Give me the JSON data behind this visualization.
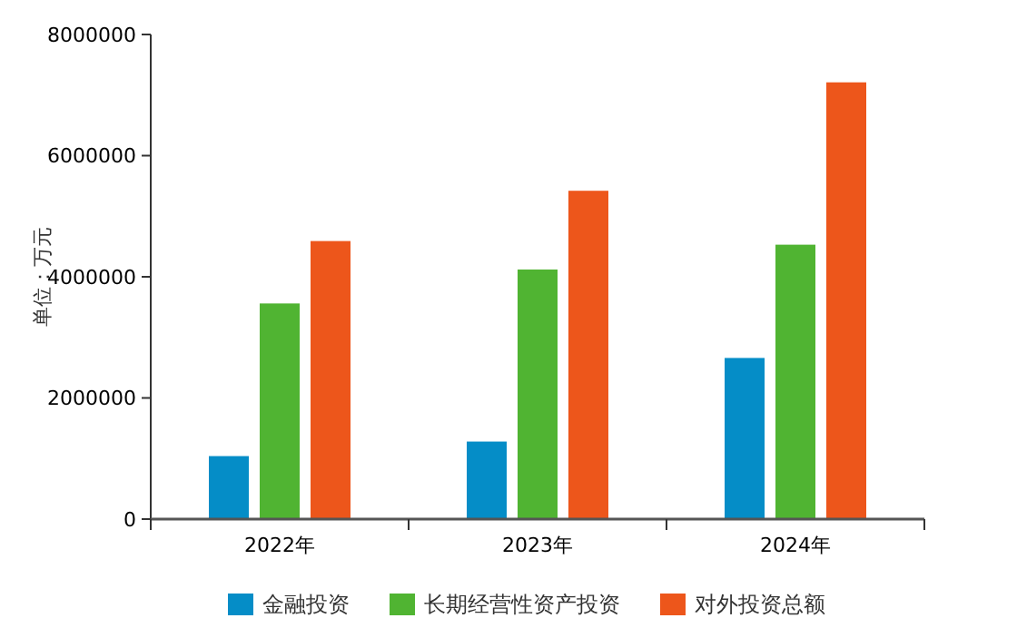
{
  "chart_data": {
    "type": "bar",
    "ylabel": "单位：万元",
    "categories": [
      "2022年",
      "2023年",
      "2024年"
    ],
    "series": [
      {
        "name": "金融投资",
        "color": "#058dc7",
        "values": [
          1040000,
          1280000,
          2660000
        ]
      },
      {
        "name": "长期经营性资产投资",
        "color": "#50b432",
        "values": [
          3560000,
          4120000,
          4530000
        ]
      },
      {
        "name": "对外投资总额",
        "color": "#ed561b",
        "values": [
          4590000,
          5420000,
          7210000
        ]
      }
    ],
    "ylim": [
      0,
      8000000
    ],
    "yticks": [
      0,
      2000000,
      4000000,
      6000000,
      8000000
    ],
    "legend": "bottom",
    "grid": false
  }
}
